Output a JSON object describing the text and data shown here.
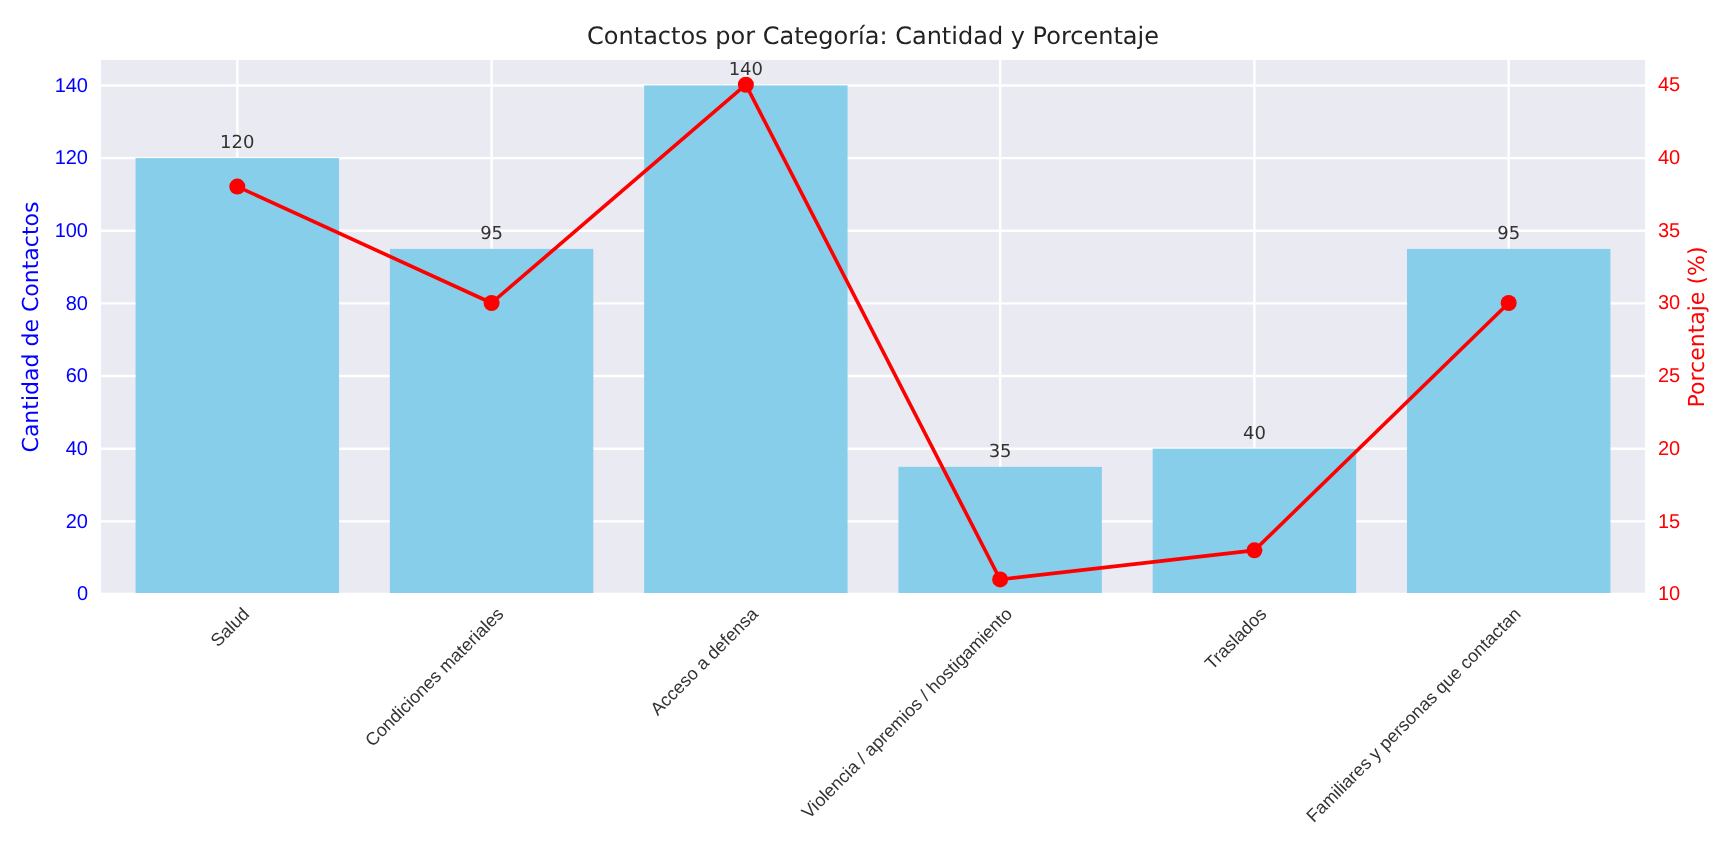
{
  "chart_data": {
    "type": "bar",
    "title": "Contactos por Categoría: Cantidad y Porcentaje",
    "ylabel": "Cantidad de Contactos",
    "y2label": "Porcentaje (%)",
    "categories": [
      "Salud",
      "Condiciones materiales",
      "Acceso a defensa",
      "Violencia / apremios / hostigamiento",
      "Traslados",
      "Familiares y personas que contactan"
    ],
    "series": [
      {
        "color": "#87ceeb",
        "values": [
          120,
          95,
          140,
          35,
          40,
          95
        ],
        "value_labels": [
          "120",
          "95",
          "140",
          "35",
          "40",
          "95"
        ]
      },
      {
        "type": "line",
        "axis": "y2",
        "color": "#ff0000",
        "values": [
          38,
          30,
          45,
          11,
          13,
          30
        ]
      }
    ],
    "ylim": [
      0,
      147
    ],
    "yticks": [
      0,
      20,
      40,
      60,
      80,
      100,
      120,
      140
    ],
    "y2lim": [
      10,
      46.7
    ],
    "y2ticks": [
      10,
      15,
      20,
      25,
      30,
      35,
      40,
      45
    ],
    "grid": true,
    "marker": "circle",
    "line_style": "solid"
  }
}
